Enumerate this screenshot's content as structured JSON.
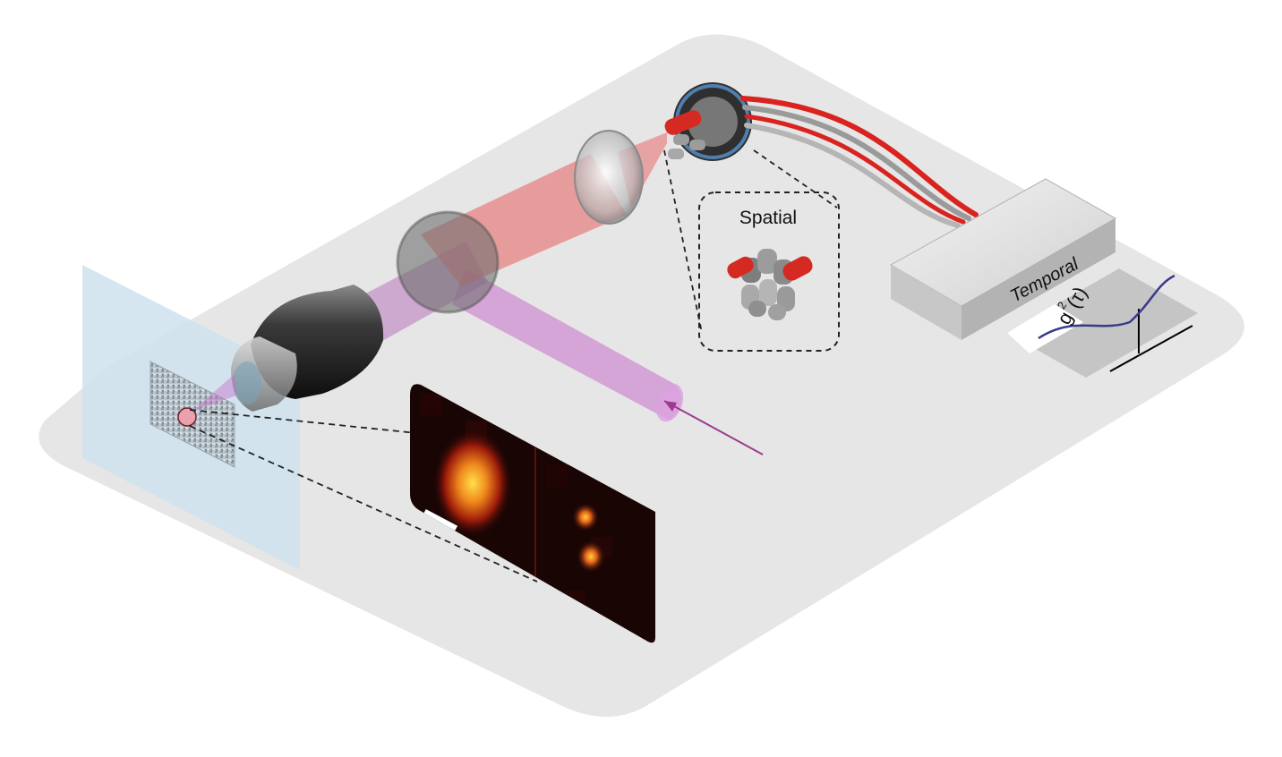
{
  "labels": {
    "spatial": "Spatial",
    "temporal": "Temporal",
    "g2_base": "g",
    "g2_exp": "2",
    "g2_arg": "(τ)"
  },
  "colors": {
    "platform": "#e6e6e6",
    "sample_plane": "#cfe2ee",
    "excitation_beam": "#c46fc8",
    "emission_beam": "#e86a6a",
    "fiber_red": "#d9231f",
    "fiber_grey": "#9a9a9a",
    "curve": "#3a3a8c",
    "inset_bg": "#1a0505"
  },
  "icons": {
    "objective": "microscope-objective-icon",
    "lens": "lens-icon",
    "fiber_bundle": "fiber-bundle-icon",
    "detector_array": "detector-array-icon"
  },
  "correlation_plot": {
    "dip_at_zero": true
  }
}
